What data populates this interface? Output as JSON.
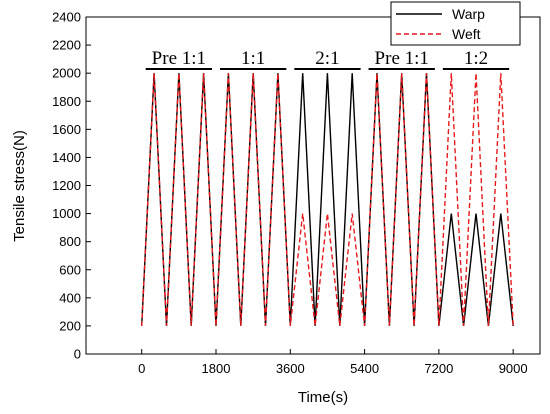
{
  "chart_data": {
    "type": "line",
    "xlabel": "Time(s)",
    "ylabel": "Tensile stress(N)",
    "xlim": [
      -1350,
      9650
    ],
    "ylim": [
      0,
      2400
    ],
    "xticks": [
      0,
      1800,
      3600,
      5400,
      7200,
      9000
    ],
    "yticks": [
      0,
      200,
      400,
      600,
      800,
      1000,
      1200,
      1400,
      1600,
      1800,
      2000,
      2200,
      2400
    ],
    "grid": false,
    "legend_position": "top-right",
    "phases": [
      {
        "label": "Pre 1:1",
        "x_start": 0,
        "x_end": 1800
      },
      {
        "label": "1:1",
        "x_start": 1800,
        "x_end": 3600
      },
      {
        "label": "2:1",
        "x_start": 3600,
        "x_end": 5400
      },
      {
        "label": "Pre 1:1",
        "x_start": 5400,
        "x_end": 7200
      },
      {
        "label": "1:2",
        "x_start": 7200,
        "x_end": 9000
      }
    ],
    "series": [
      {
        "name": "Warp",
        "color": "#000000",
        "dash": "solid",
        "x": [
          0,
          300,
          600,
          900,
          1200,
          1500,
          1800,
          2100,
          2400,
          2700,
          3000,
          3300,
          3600,
          3900,
          4200,
          4500,
          4800,
          5100,
          5400,
          5700,
          6000,
          6300,
          6600,
          6900,
          7200,
          7500,
          7800,
          8100,
          8400,
          8700,
          9000
        ],
        "y": [
          200,
          2000,
          200,
          2000,
          200,
          2000,
          200,
          2000,
          200,
          2000,
          200,
          2000,
          200,
          2000,
          200,
          2000,
          200,
          2000,
          200,
          2000,
          200,
          2000,
          200,
          2000,
          200,
          1000,
          200,
          1000,
          200,
          1000,
          200
        ]
      },
      {
        "name": "Weft",
        "color": "#e8191b",
        "dash": "dashed",
        "x": [
          0,
          300,
          600,
          900,
          1200,
          1500,
          1800,
          2100,
          2400,
          2700,
          3000,
          3300,
          3600,
          3900,
          4200,
          4500,
          4800,
          5100,
          5400,
          5700,
          6000,
          6300,
          6600,
          6900,
          7200,
          7500,
          7800,
          8100,
          8400,
          8700,
          9000
        ],
        "y": [
          200,
          2000,
          200,
          2000,
          200,
          2000,
          200,
          2000,
          200,
          2000,
          200,
          2000,
          200,
          1000,
          200,
          1000,
          200,
          1000,
          200,
          2000,
          200,
          2000,
          200,
          2000,
          200,
          2000,
          200,
          2000,
          200,
          2000,
          200
        ]
      }
    ]
  }
}
